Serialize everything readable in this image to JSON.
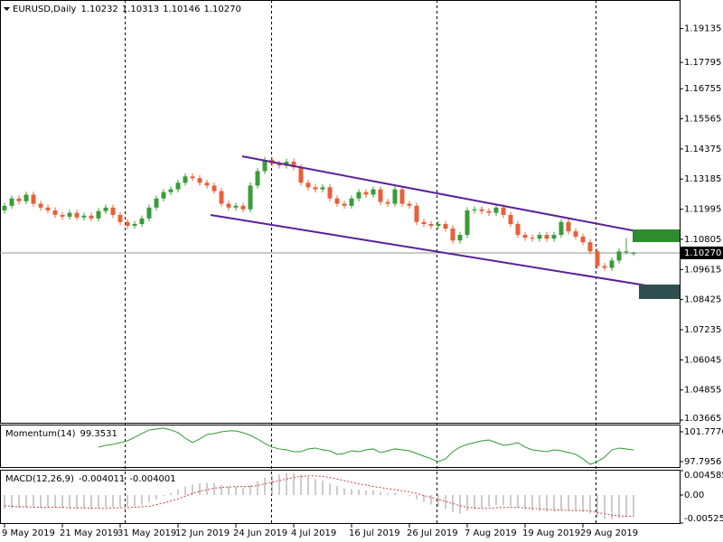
{
  "chart_data": [
    {
      "type": "candlestick",
      "title": "EURUSD,Daily",
      "categories": [
        "9 May 2019",
        null,
        null,
        null,
        null,
        null,
        null,
        null,
        "21 May 2019",
        null,
        null,
        null,
        null,
        null,
        null,
        null,
        "31 May 2019",
        null,
        null,
        null,
        null,
        null,
        null,
        null,
        "12 Jun 2019",
        null,
        null,
        null,
        null,
        null,
        null,
        null,
        "24 Jun 2019",
        null,
        null,
        null,
        null,
        null,
        null,
        null,
        "4 Jul 2019",
        null,
        null,
        null,
        null,
        null,
        null,
        null,
        "16 Jul 2019",
        null,
        null,
        null,
        null,
        null,
        null,
        null,
        "26 Jul 2019",
        null,
        null,
        null,
        null,
        null,
        null,
        null,
        "7 Aug 2019",
        null,
        null,
        null,
        null,
        null,
        null,
        null,
        "19 Aug 2019",
        null,
        null,
        null,
        null,
        null,
        null,
        null,
        "29 Aug 2019",
        null,
        null,
        null,
        null,
        null,
        null,
        null
      ],
      "open": [
        1.1195,
        1.1213,
        1.1242,
        1.1231,
        1.1257,
        1.1221,
        1.1206,
        1.1195,
        1.1177,
        1.117,
        1.1185,
        1.1167,
        1.1174,
        1.1163,
        1.1192,
        1.1206,
        1.1177,
        1.1149,
        1.1134,
        1.1141,
        1.1163,
        1.1206,
        1.1242,
        1.1267,
        1.1278,
        1.1304,
        1.1329,
        1.1322,
        1.1304,
        1.1293,
        1.1271,
        1.1221,
        1.1206,
        1.1213,
        1.1199,
        1.1293,
        1.135,
        1.1394,
        1.1379,
        1.1372,
        1.1387,
        1.1365,
        1.1304,
        1.1286,
        1.1278,
        1.1286,
        1.1242,
        1.1221,
        1.1213,
        1.1242,
        1.1267,
        1.1257,
        1.1278,
        1.1228,
        1.1221,
        1.1278,
        1.1221,
        1.1213,
        1.1149,
        1.1141,
        1.1134,
        1.1141,
        1.1123,
        1.1076,
        1.1098,
        1.1195,
        1.1199,
        1.1192,
        1.1185,
        1.1206,
        1.1177,
        1.1141,
        1.1098,
        1.1087,
        1.1083,
        1.1098,
        1.1083,
        1.1098,
        1.1149,
        1.1112,
        1.1091,
        1.1069,
        1.1033,
        1.0975,
        1.0968,
        1.0997,
        1.1033,
        1.10232
      ],
      "high": [
        1.1225,
        1.1254,
        1.1254,
        1.1269,
        1.1269,
        1.1233,
        1.1218,
        1.1207,
        1.1189,
        1.1197,
        1.1197,
        1.1186,
        1.1186,
        1.1204,
        1.1218,
        1.1218,
        1.1189,
        1.1161,
        1.1153,
        1.1175,
        1.1218,
        1.1254,
        1.1279,
        1.129,
        1.1316,
        1.1341,
        1.1341,
        1.1334,
        1.1316,
        1.1305,
        1.1283,
        1.1233,
        1.1225,
        1.1225,
        1.1305,
        1.1362,
        1.1406,
        1.1406,
        1.1391,
        1.1399,
        1.1399,
        1.1377,
        1.1316,
        1.1298,
        1.1298,
        1.1298,
        1.1254,
        1.1233,
        1.1254,
        1.1279,
        1.1279,
        1.129,
        1.129,
        1.124,
        1.129,
        1.129,
        1.1233,
        1.1225,
        1.1161,
        1.1153,
        1.1153,
        1.1153,
        1.1135,
        1.111,
        1.1207,
        1.1211,
        1.1211,
        1.1204,
        1.1218,
        1.1218,
        1.1189,
        1.1153,
        1.111,
        1.1099,
        1.111,
        1.111,
        1.111,
        1.1161,
        1.1161,
        1.1124,
        1.1103,
        1.1081,
        1.1045,
        1.0987,
        1.1009,
        1.1045,
        1.1085,
        1.10313
      ],
      "low": [
        1.1183,
        1.1201,
        1.1219,
        1.1219,
        1.1209,
        1.1194,
        1.1183,
        1.1165,
        1.1158,
        1.1158,
        1.1155,
        1.1155,
        1.1151,
        1.1151,
        1.118,
        1.1165,
        1.1137,
        1.1122,
        1.1122,
        1.1129,
        1.1151,
        1.1194,
        1.123,
        1.1255,
        1.1266,
        1.1292,
        1.131,
        1.1292,
        1.1281,
        1.1259,
        1.1209,
        1.1194,
        1.1194,
        1.1187,
        1.1187,
        1.1281,
        1.1338,
        1.1367,
        1.136,
        1.136,
        1.1353,
        1.1292,
        1.1274,
        1.1266,
        1.1266,
        1.123,
        1.1209,
        1.1201,
        1.1201,
        1.123,
        1.1245,
        1.1245,
        1.1216,
        1.1209,
        1.1209,
        1.1209,
        1.1201,
        1.1137,
        1.1129,
        1.1122,
        1.1122,
        1.1111,
        1.1064,
        1.1064,
        1.1086,
        1.1183,
        1.118,
        1.1173,
        1.1173,
        1.1165,
        1.1129,
        1.1086,
        1.1075,
        1.1071,
        1.1071,
        1.1071,
        1.1071,
        1.1086,
        1.11,
        1.1079,
        1.1057,
        1.1021,
        1.0963,
        1.0956,
        1.0956,
        1.0985,
        1.1021,
        1.10146
      ],
      "close": [
        1.1213,
        1.1242,
        1.1231,
        1.1257,
        1.1221,
        1.1206,
        1.1195,
        1.1177,
        1.117,
        1.1185,
        1.1167,
        1.1174,
        1.1163,
        1.1192,
        1.1206,
        1.1177,
        1.1149,
        1.1134,
        1.1141,
        1.1163,
        1.1206,
        1.1242,
        1.1267,
        1.1278,
        1.1304,
        1.1329,
        1.1322,
        1.1304,
        1.1293,
        1.1271,
        1.1221,
        1.1206,
        1.1213,
        1.1199,
        1.1293,
        1.135,
        1.1394,
        1.1379,
        1.1372,
        1.1387,
        1.1365,
        1.1304,
        1.1286,
        1.1278,
        1.1286,
        1.1242,
        1.1221,
        1.1213,
        1.1242,
        1.1267,
        1.1257,
        1.1278,
        1.1228,
        1.1221,
        1.1278,
        1.1221,
        1.1213,
        1.1149,
        1.1141,
        1.1134,
        1.1141,
        1.1123,
        1.1076,
        1.1098,
        1.1195,
        1.1199,
        1.1192,
        1.1185,
        1.1206,
        1.1177,
        1.1141,
        1.1098,
        1.1087,
        1.1083,
        1.1098,
        1.1083,
        1.1098,
        1.1149,
        1.1112,
        1.1091,
        1.1069,
        1.1033,
        1.0975,
        1.0968,
        1.0997,
        1.1033,
        1.1033,
        1.1027
      ],
      "last_price": {
        "value": 1.1027,
        "label": "1.10270"
      },
      "up_color": "#3a9b3a",
      "down_color": "#e8603a",
      "ylim": [
        1.0356,
        1.2008
      ],
      "yticks": [
        1.19135,
        1.17795,
        1.16755,
        1.15565,
        1.14375,
        1.13185,
        1.11995,
        1.10805,
        1.09615,
        1.08425,
        1.07235,
        1.06045,
        1.04855,
        1.03665
      ]
    },
    {
      "type": "line",
      "title": "Momentum(14)",
      "color": "#2e9a2e",
      "values": [
        null,
        null,
        null,
        null,
        null,
        null,
        null,
        null,
        null,
        null,
        null,
        null,
        null,
        99.73,
        99.97,
        100.09,
        100.33,
        100.57,
        101.05,
        101.54,
        102.02,
        102.14,
        102.26,
        102.02,
        101.66,
        100.93,
        100.33,
        100.81,
        101.42,
        101.54,
        101.78,
        101.9,
        101.9,
        101.66,
        101.29,
        100.81,
        100.21,
        99.73,
        99.49,
        99.36,
        99.12,
        99.12,
        99.49,
        99.61,
        99.36,
        99.24,
        98.76,
        98.88,
        99.24,
        99.12,
        99.36,
        99.49,
        99.0,
        99.24,
        99.49,
        99.36,
        99.24,
        98.88,
        98.52,
        98.16,
        97.79,
        98.16,
        99.12,
        99.73,
        100.09,
        100.33,
        100.57,
        100.69,
        100.33,
        99.97,
        100.09,
        100.33,
        99.73,
        99.36,
        99.24,
        99.12,
        99.36,
        99.24,
        99.0,
        98.76,
        98.16,
        97.43,
        97.79,
        98.4,
        99.36,
        99.61,
        99.49,
        99.3531
      ],
      "ylim": [
        96.95,
        102.74
      ],
      "yticks": [
        101.7776,
        97.7956
      ]
    },
    {
      "type": "macd",
      "title": "MACD(12,26,9)",
      "series": [
        {
          "color": "#9a9a9a",
          "values": [
            -0.0026,
            -0.0025,
            -0.0024,
            -0.0024,
            -0.0023,
            -0.0023,
            -0.0023,
            -0.0024,
            -0.0025,
            -0.0025,
            -0.0026,
            -0.0026,
            -0.0026,
            -0.0025,
            -0.0023,
            -0.0022,
            -0.0022,
            -0.0022,
            -0.0021,
            -0.0019,
            -0.0014,
            -0.0008,
            -0.0002,
            0.0004,
            0.001,
            0.0016,
            0.002,
            0.0022,
            0.0023,
            0.0022,
            0.0019,
            0.0017,
            0.0016,
            0.0014,
            0.0019,
            0.0026,
            0.0033,
            0.0037,
            0.0039,
            0.0041,
            0.0041,
            0.0038,
            0.0034,
            0.003,
            0.0027,
            0.0022,
            0.0017,
            0.0013,
            0.0011,
            0.001,
            0.0009,
            0.0009,
            0.0006,
            0.0003,
            0.0004,
            0.0001,
            -0.0002,
            -0.0008,
            -0.0013,
            -0.0018,
            -0.0022,
            -0.0026,
            -0.0032,
            -0.0035,
            -0.003,
            -0.0026,
            -0.0024,
            -0.0022,
            -0.0019,
            -0.0019,
            -0.0021,
            -0.0024,
            -0.0027,
            -0.0029,
            -0.003,
            -0.0031,
            -0.0031,
            -0.0029,
            -0.0029,
            -0.003,
            -0.0032,
            -0.0035,
            -0.0041,
            -0.0045,
            -0.0045,
            -0.0043,
            -0.0041,
            -0.004011
          ]
        },
        {
          "color": "#d04040",
          "values": [
            -0.002,
            -0.0021,
            -0.0022,
            -0.0022,
            -0.0023,
            -0.0023,
            -0.0023,
            -0.0023,
            -0.0023,
            -0.0024,
            -0.0024,
            -0.0024,
            -0.0025,
            -0.0025,
            -0.0025,
            -0.0024,
            -0.0024,
            -0.0024,
            -0.0023,
            -0.0022,
            -0.0021,
            -0.0018,
            -0.0015,
            -0.0011,
            -0.0007,
            -0.0002,
            0.0003,
            0.0007,
            0.001,
            0.0013,
            0.0014,
            0.0015,
            0.0016,
            0.0016,
            0.0016,
            0.0018,
            0.0021,
            0.0024,
            0.0027,
            0.003,
            0.0033,
            0.0035,
            0.0036,
            0.0036,
            0.0035,
            0.0033,
            0.003,
            0.0027,
            0.0024,
            0.0021,
            0.0019,
            0.0016,
            0.0014,
            0.0012,
            0.001,
            0.0008,
            0.0006,
            0.0003,
            -0.0001,
            -0.0004,
            -0.0008,
            -0.0012,
            -0.0016,
            -0.002,
            -0.0023,
            -0.0024,
            -0.0025,
            -0.0025,
            -0.0024,
            -0.0023,
            -0.0023,
            -0.0023,
            -0.0024,
            -0.0025,
            -0.0026,
            -0.0027,
            -0.0028,
            -0.0028,
            -0.0029,
            -0.0029,
            -0.0029,
            -0.003,
            -0.0033,
            -0.0035,
            -0.0038,
            -0.0039,
            -0.004,
            -0.004001
          ]
        }
      ],
      "ylim": [
        -0.005254,
        0.004585
      ],
      "yticks": [
        0.004585,
        {
          "value": 0,
          "label": "0.00"
        },
        -0.005254
      ]
    }
  ]
}
